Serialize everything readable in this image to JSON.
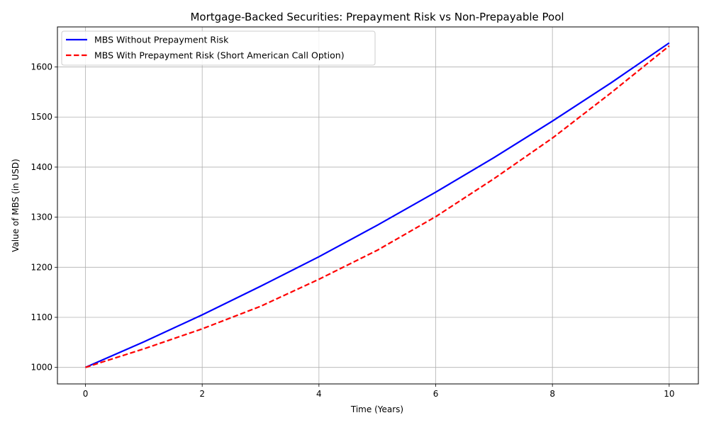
{
  "chart_data": {
    "type": "line",
    "title": "Mortgage-Backed Securities: Prepayment Risk vs Non-Prepayable Pool",
    "xlabel": "Time (Years)",
    "ylabel": "Value of MBS (in USD)",
    "xlim": [
      -0.48,
      10.5
    ],
    "ylim": [
      967,
      1680
    ],
    "xticks": [
      0,
      2,
      4,
      6,
      8,
      10
    ],
    "yticks": [
      1000,
      1100,
      1200,
      1300,
      1400,
      1500,
      1600
    ],
    "grid": true,
    "legend_position": "top-left",
    "x": [
      0,
      1,
      2,
      3,
      4,
      5,
      6,
      7,
      8,
      9,
      10
    ],
    "series": [
      {
        "name": "MBS Without Prepayment Risk",
        "color": "#0000ff",
        "style": "solid",
        "values": [
          1000,
          1051,
          1105,
          1162,
          1221,
          1284,
          1350,
          1419,
          1492,
          1568,
          1648
        ]
      },
      {
        "name": "MBS With Prepayment Risk (Short American Call Option)",
        "color": "#ff0000",
        "style": "dashed",
        "values": [
          1000,
          1037,
          1077,
          1122,
          1176,
          1234,
          1301,
          1377,
          1458,
          1548,
          1642
        ]
      }
    ]
  }
}
